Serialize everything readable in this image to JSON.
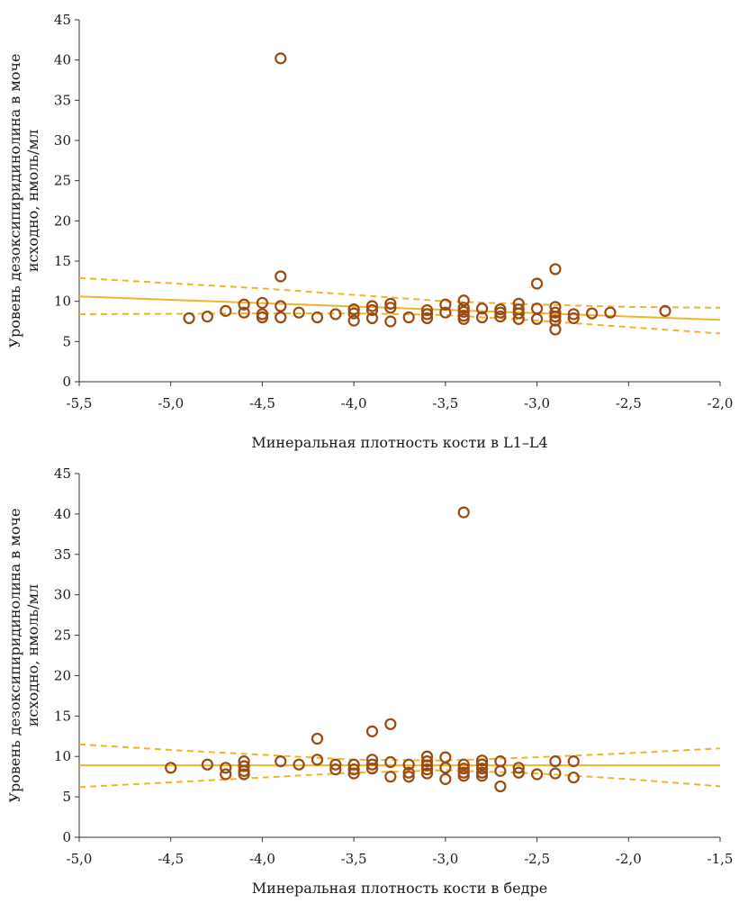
{
  "chart_data": [
    {
      "type": "scatter",
      "title": "",
      "xlabel": "Минеральная плотность кости в L1–L4",
      "ylabel_lines": [
        "Уровень дезоксипиридинолина в моче",
        "исходно, нмоль/мл"
      ],
      "xlim": [
        -5.5,
        -2.0
      ],
      "ylim": [
        0,
        45
      ],
      "xticks": [
        -5.5,
        -5.0,
        -4.5,
        -4.0,
        -3.5,
        -3.0,
        -2.5,
        -2.0
      ],
      "xtick_labels": [
        "-5,5",
        "-5,0",
        "-4,5",
        "-4,0",
        "-3,5",
        "-3,0",
        "-2,5",
        "-2,0"
      ],
      "yticks": [
        0,
        5,
        10,
        15,
        20,
        25,
        30,
        35,
        40,
        45
      ],
      "ytick_labels": [
        "0",
        "5",
        "10",
        "15",
        "20",
        "25",
        "30",
        "35",
        "40",
        "45"
      ],
      "grid": false,
      "colors": {
        "points": "#9a4a12",
        "fit": "#f0b429"
      },
      "points": [
        [
          -4.9,
          7.9
        ],
        [
          -4.8,
          8.1
        ],
        [
          -4.7,
          8.8
        ],
        [
          -4.6,
          9.6
        ],
        [
          -4.6,
          8.6
        ],
        [
          -4.5,
          9.8
        ],
        [
          -4.5,
          8.4
        ],
        [
          -4.5,
          8.0
        ],
        [
          -4.4,
          40.2
        ],
        [
          -4.4,
          13.1
        ],
        [
          -4.4,
          9.4
        ],
        [
          -4.4,
          8.0
        ],
        [
          -4.3,
          8.6
        ],
        [
          -4.2,
          8.0
        ],
        [
          -4.1,
          8.4
        ],
        [
          -4.0,
          9.0
        ],
        [
          -4.0,
          8.5
        ],
        [
          -4.0,
          7.6
        ],
        [
          -3.9,
          9.4
        ],
        [
          -3.9,
          8.9
        ],
        [
          -3.9,
          7.9
        ],
        [
          -3.8,
          9.7
        ],
        [
          -3.8,
          9.2
        ],
        [
          -3.8,
          7.5
        ],
        [
          -3.7,
          8.0
        ],
        [
          -3.6,
          8.9
        ],
        [
          -3.6,
          8.4
        ],
        [
          -3.6,
          7.9
        ],
        [
          -3.5,
          9.6
        ],
        [
          -3.5,
          8.6
        ],
        [
          -3.4,
          10.1
        ],
        [
          -3.4,
          9.2
        ],
        [
          -3.4,
          8.7
        ],
        [
          -3.4,
          8.2
        ],
        [
          -3.4,
          7.8
        ],
        [
          -3.3,
          9.1
        ],
        [
          -3.3,
          8.0
        ],
        [
          -3.2,
          9.0
        ],
        [
          -3.2,
          8.6
        ],
        [
          -3.2,
          8.1
        ],
        [
          -3.1,
          9.7
        ],
        [
          -3.1,
          9.0
        ],
        [
          -3.1,
          8.5
        ],
        [
          -3.1,
          7.8
        ],
        [
          -3.0,
          12.2
        ],
        [
          -3.0,
          9.1
        ],
        [
          -3.0,
          7.8
        ],
        [
          -2.9,
          14.0
        ],
        [
          -2.9,
          9.3
        ],
        [
          -2.9,
          8.6
        ],
        [
          -2.9,
          8.1
        ],
        [
          -2.9,
          7.6
        ],
        [
          -2.9,
          6.5
        ],
        [
          -2.8,
          8.4
        ],
        [
          -2.8,
          7.9
        ],
        [
          -2.7,
          8.5
        ],
        [
          -2.6,
          8.6
        ],
        [
          -2.3,
          8.8
        ]
      ],
      "fit_line": [
        [
          -5.5,
          10.6
        ],
        [
          -2.0,
          7.7
        ]
      ],
      "ci_upper": [
        [
          -5.5,
          12.9
        ],
        [
          -4.5,
          11.6
        ],
        [
          -4.0,
          10.8
        ],
        [
          -3.5,
          10.0
        ],
        [
          -3.0,
          9.6
        ],
        [
          -2.5,
          9.3
        ],
        [
          -2.0,
          9.2
        ]
      ],
      "ci_lower": [
        [
          -5.5,
          8.4
        ],
        [
          -4.5,
          8.5
        ],
        [
          -4.0,
          8.5
        ],
        [
          -3.5,
          8.3
        ],
        [
          -3.0,
          7.6
        ],
        [
          -2.5,
          6.8
        ],
        [
          -2.0,
          6.0
        ]
      ]
    },
    {
      "type": "scatter",
      "title": "",
      "xlabel": "Минеральная плотность кости в бедре",
      "ylabel_lines": [
        "Уровень дезоксипиридинолина в моче",
        "исходно, нмоль/мл"
      ],
      "xlim": [
        -5.0,
        -1.5
      ],
      "ylim": [
        0,
        45
      ],
      "xticks": [
        -5.0,
        -4.5,
        -4.0,
        -3.5,
        -3.0,
        -2.5,
        -2.0,
        -1.5
      ],
      "xtick_labels": [
        "-5,0",
        "-4,5",
        "-4,0",
        "-3,5",
        "-3,0",
        "-2,5",
        "-2,0",
        "-1,5"
      ],
      "yticks": [
        0,
        5,
        10,
        15,
        20,
        25,
        30,
        35,
        40,
        45
      ],
      "ytick_labels": [
        "0",
        "5",
        "10",
        "15",
        "20",
        "25",
        "30",
        "35",
        "40",
        "45"
      ],
      "grid": false,
      "colors": {
        "points": "#9a4a12",
        "fit": "#f0b429"
      },
      "points": [
        [
          -4.5,
          8.6
        ],
        [
          -4.3,
          9.0
        ],
        [
          -4.2,
          8.6
        ],
        [
          -4.2,
          7.8
        ],
        [
          -4.1,
          9.4
        ],
        [
          -4.1,
          8.8
        ],
        [
          -4.1,
          8.2
        ],
        [
          -4.1,
          7.8
        ],
        [
          -3.9,
          9.4
        ],
        [
          -3.8,
          9.0
        ],
        [
          -3.7,
          12.2
        ],
        [
          -3.7,
          9.6
        ],
        [
          -3.6,
          9.0
        ],
        [
          -3.6,
          8.4
        ],
        [
          -3.5,
          9.0
        ],
        [
          -3.5,
          8.4
        ],
        [
          -3.5,
          7.9
        ],
        [
          -3.4,
          13.1
        ],
        [
          -3.4,
          9.6
        ],
        [
          -3.4,
          9.0
        ],
        [
          -3.4,
          8.5
        ],
        [
          -3.3,
          14.0
        ],
        [
          -3.3,
          9.3
        ],
        [
          -3.3,
          7.5
        ],
        [
          -3.2,
          9.0
        ],
        [
          -3.2,
          8.0
        ],
        [
          -3.2,
          7.5
        ],
        [
          -3.1,
          10.0
        ],
        [
          -3.1,
          9.4
        ],
        [
          -3.1,
          8.9
        ],
        [
          -3.1,
          8.4
        ],
        [
          -3.1,
          7.9
        ],
        [
          -3.0,
          9.9
        ],
        [
          -3.0,
          8.6
        ],
        [
          -3.0,
          7.2
        ],
        [
          -2.9,
          40.2
        ],
        [
          -2.9,
          9.0
        ],
        [
          -2.9,
          8.5
        ],
        [
          -2.9,
          8.0
        ],
        [
          -2.9,
          7.6
        ],
        [
          -2.8,
          9.5
        ],
        [
          -2.8,
          9.0
        ],
        [
          -2.8,
          8.5
        ],
        [
          -2.8,
          8.0
        ],
        [
          -2.8,
          7.6
        ],
        [
          -2.7,
          9.4
        ],
        [
          -2.7,
          8.2
        ],
        [
          -2.7,
          6.3
        ],
        [
          -2.6,
          8.6
        ],
        [
          -2.6,
          8.0
        ],
        [
          -2.5,
          7.8
        ],
        [
          -2.4,
          9.4
        ],
        [
          -2.4,
          7.9
        ],
        [
          -2.3,
          9.4
        ],
        [
          -2.3,
          7.4
        ]
      ],
      "fit_line": [
        [
          -5.0,
          8.9
        ],
        [
          -1.5,
          8.9
        ]
      ],
      "ci_upper": [
        [
          -5.0,
          11.5
        ],
        [
          -4.5,
          10.8
        ],
        [
          -4.0,
          10.2
        ],
        [
          -3.5,
          9.6
        ],
        [
          -3.0,
          9.5
        ],
        [
          -2.5,
          9.9
        ],
        [
          -2.0,
          10.4
        ],
        [
          -1.5,
          11.0
        ]
      ],
      "ci_lower": [
        [
          -5.0,
          6.2
        ],
        [
          -4.5,
          6.8
        ],
        [
          -4.0,
          7.4
        ],
        [
          -3.5,
          8.0
        ],
        [
          -3.0,
          8.3
        ],
        [
          -2.5,
          7.9
        ],
        [
          -2.0,
          7.2
        ],
        [
          -1.5,
          6.3
        ]
      ]
    }
  ]
}
